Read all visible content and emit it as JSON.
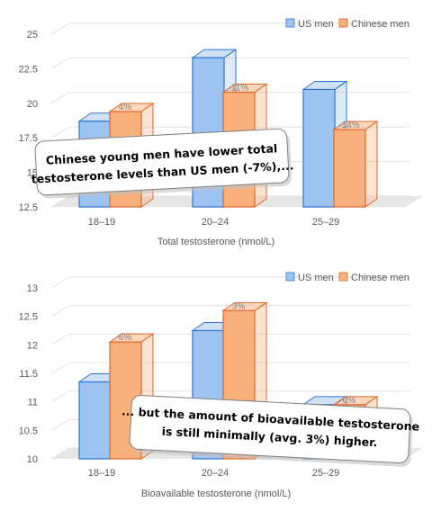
{
  "colors": {
    "us_fill": "#9dc3f0",
    "us_edge": "#2e75d6",
    "cn_fill": "#f9b07a",
    "cn_edge": "#e0672a"
  },
  "chart_data": [
    {
      "type": "bar",
      "xlabel": "Total testosterone (nmol/L)",
      "categories": [
        "18–19",
        "20–24",
        "25–29"
      ],
      "ylim": [
        12.5,
        25
      ],
      "yticks": [
        "12.5",
        "15",
        "17.5",
        "20",
        "22.5",
        "25"
      ],
      "grid": true,
      "legend_position": "top-right",
      "series": [
        {
          "name": "US men",
          "values": [
            18.7,
            23.3,
            21.0
          ]
        },
        {
          "name": "Chinese men",
          "values": [
            19.4,
            20.8,
            18.1
          ]
        }
      ],
      "data_labels": [
        "4%",
        "-11%",
        "-14%"
      ],
      "callout": {
        "lines": [
          "Chinese young men have lower total",
          "testosterone levels than US men (-7%),..."
        ]
      }
    },
    {
      "type": "bar",
      "xlabel": "Bioavailable testosterone (nmol/L)",
      "categories": [
        "18–19",
        "20–24",
        "25–29"
      ],
      "ylim": [
        10,
        13
      ],
      "yticks": [
        "10",
        "10.5",
        "11",
        "11.5",
        "12",
        "12.5",
        "13"
      ],
      "grid": true,
      "legend_position": "top-right",
      "series": [
        {
          "name": "US men",
          "values": [
            11.35,
            12.25,
            10.95
          ]
        },
        {
          "name": "Chinese men",
          "values": [
            12.05,
            12.6,
            10.95
          ]
        }
      ],
      "data_labels": [
        "6%",
        "3%",
        "0%"
      ],
      "callout": {
        "lines": [
          "... but the amount of bioavailable testosterone",
          "is still minimally (avg. 3%) higher."
        ]
      }
    }
  ]
}
